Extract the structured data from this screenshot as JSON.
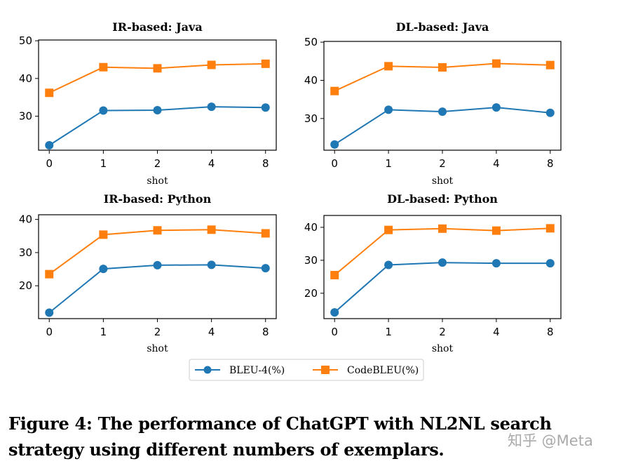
{
  "chart_data": [
    {
      "type": "line",
      "title": "IR-based: Java",
      "xlabel": "shot",
      "ylabel": "",
      "categories": [
        "0",
        "1",
        "2",
        "4",
        "8"
      ],
      "ylim": [
        21,
        50.2
      ],
      "yticks": [
        30,
        40,
        50
      ],
      "grid": false,
      "series": [
        {
          "name": "BLEU-4(%)",
          "values": [
            22.3,
            31.5,
            31.6,
            32.5,
            32.3
          ]
        },
        {
          "name": "CodeBLEU(%)",
          "values": [
            36.2,
            43.0,
            42.7,
            43.6,
            43.9
          ]
        }
      ]
    },
    {
      "type": "line",
      "title": "DL-based: Java",
      "xlabel": "shot",
      "ylabel": "",
      "categories": [
        "0",
        "1",
        "2",
        "4",
        "8"
      ],
      "ylim": [
        21.7,
        50.2
      ],
      "yticks": [
        30,
        40,
        50
      ],
      "grid": false,
      "series": [
        {
          "name": "BLEU-4(%)",
          "values": [
            23.2,
            32.3,
            31.8,
            32.9,
            31.5
          ]
        },
        {
          "name": "CodeBLEU(%)",
          "values": [
            37.2,
            43.7,
            43.4,
            44.4,
            44.0
          ]
        }
      ]
    },
    {
      "type": "line",
      "title": "IR-based: Python",
      "xlabel": "shot",
      "ylabel": "",
      "categories": [
        "0",
        "1",
        "2",
        "4",
        "8"
      ],
      "ylim": [
        10.1,
        41.4
      ],
      "yticks": [
        20,
        30,
        40
      ],
      "grid": false,
      "series": [
        {
          "name": "BLEU-4(%)",
          "values": [
            11.9,
            25.1,
            26.2,
            26.3,
            25.3
          ]
        },
        {
          "name": "CodeBLEU(%)",
          "values": [
            23.5,
            35.4,
            36.7,
            36.9,
            35.8
          ]
        }
      ]
    },
    {
      "type": "line",
      "title": "DL-based: Python",
      "xlabel": "shot",
      "ylabel": "",
      "categories": [
        "0",
        "1",
        "2",
        "4",
        "8"
      ],
      "ylim": [
        12.3,
        43.6
      ],
      "yticks": [
        20,
        30,
        40
      ],
      "grid": false,
      "series": [
        {
          "name": "BLEU-4(%)",
          "values": [
            14.2,
            28.6,
            29.3,
            29.1,
            29.1
          ]
        },
        {
          "name": "CodeBLEU(%)",
          "values": [
            25.5,
            39.2,
            39.6,
            39.0,
            39.7
          ]
        }
      ]
    }
  ],
  "legend": {
    "placement": "bottom-center",
    "items": [
      {
        "label": "BLEU-4(%)",
        "color": "#1f77b4",
        "marker": "circle"
      },
      {
        "label": "CodeBLEU(%)",
        "color": "#ff7f0e",
        "marker": "square"
      }
    ]
  },
  "caption": {
    "line1": "Figure 4: The performance of ChatGPT with NL2NL search",
    "line2": "strategy using different numbers of exemplars."
  },
  "watermark": "知乎 @Meta"
}
